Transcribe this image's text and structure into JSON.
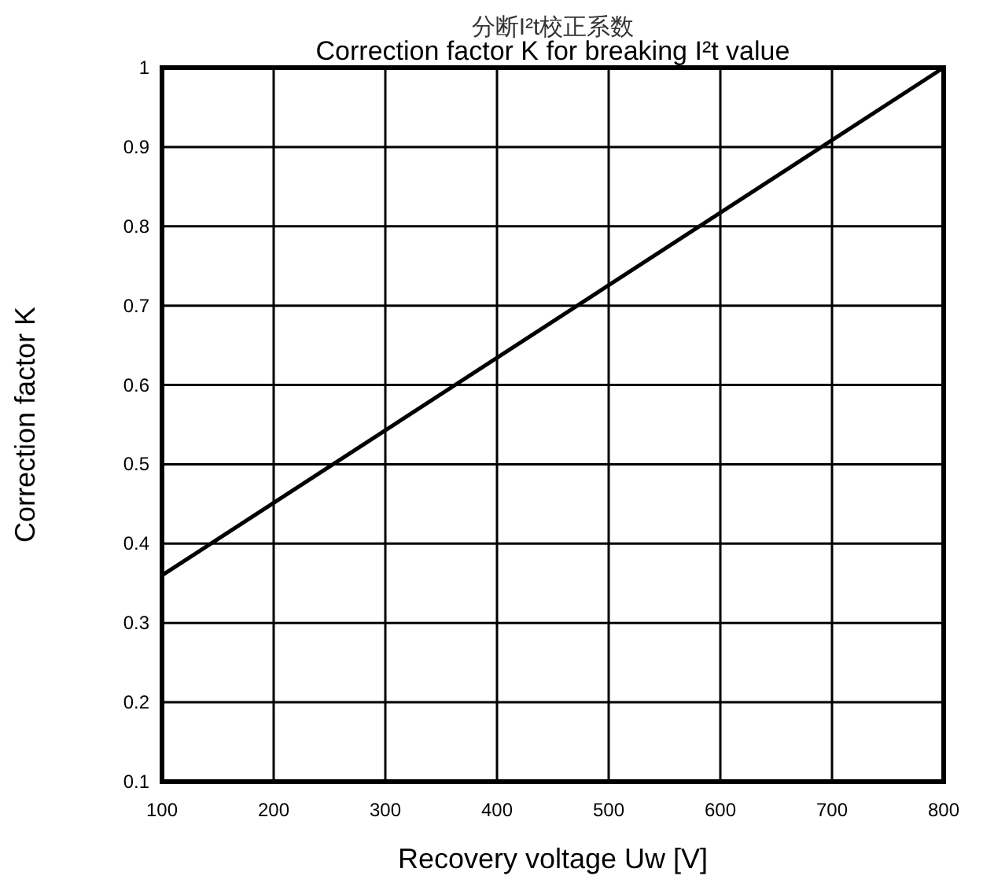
{
  "chart_data": {
    "type": "line",
    "title": "分断I²t校正系数",
    "subtitle": "Correction factor K for breaking I²t value",
    "xlabel": "Recovery voltage Uw [V]",
    "ylabel": "Correction factor K",
    "x": [
      100,
      800
    ],
    "series": [
      {
        "color": "#000000",
        "values": [
          0.36,
          1.0
        ]
      }
    ],
    "xlim": [
      100,
      800
    ],
    "xticks": [
      100,
      200,
      300,
      400,
      500,
      600,
      700,
      800
    ],
    "ylim": [
      0.1,
      1
    ],
    "yticks": [
      0.1,
      0.2,
      0.3,
      0.4,
      0.5,
      0.6,
      0.7,
      0.8,
      0.9,
      1
    ],
    "grid": true,
    "line_style": "solid",
    "marker": "none"
  }
}
